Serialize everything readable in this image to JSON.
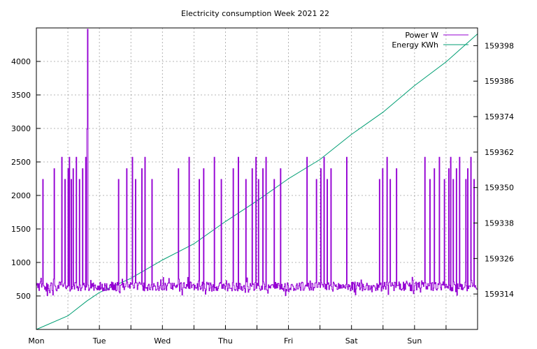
{
  "chart_data": {
    "type": "line",
    "title": "Electricity consumption Week 2021 22",
    "x": {
      "range_days": [
        0,
        7
      ],
      "tick_labels": [
        "Mon",
        "Tue",
        "Wed",
        "Thu",
        "Fri",
        "Sat",
        "Sun"
      ],
      "label_positions_days": [
        0,
        1,
        2,
        3,
        4,
        5,
        6
      ],
      "gridline_positions_days": [
        0.5,
        1,
        1.5,
        2,
        2.5,
        3,
        3.5,
        4,
        4.5,
        5,
        5.5,
        6,
        6.5
      ]
    },
    "y_left": {
      "range": [
        0,
        4500
      ],
      "ticks": [
        500,
        1000,
        1500,
        2000,
        2500,
        3000,
        3500,
        4000
      ]
    },
    "y_right": {
      "range": [
        159302,
        159404
      ],
      "ticks": [
        159314,
        159326,
        159338,
        159350,
        159362,
        159374,
        159386,
        159398
      ]
    },
    "grid": true,
    "legend_position": "top-right",
    "series": [
      {
        "name": "Power W",
        "axis": "left",
        "color": "#9400d3",
        "baseline_w": [
          500,
          780
        ],
        "spike_levels_w": [
          2240,
          2400,
          2570
        ],
        "peaks": [
          {
            "day": 0.8,
            "value_w": 2990
          },
          {
            "day": 0.81,
            "value_w": 4230
          },
          {
            "day": 0.815,
            "value_w": 4480
          }
        ],
        "spike_days": [
          0.1,
          0.28,
          0.4,
          0.45,
          0.5,
          0.52,
          0.55,
          0.58,
          0.63,
          0.68,
          0.73,
          0.78,
          1.3,
          1.43,
          1.52,
          1.57,
          1.67,
          1.72,
          1.83,
          2.25,
          2.42,
          2.58,
          2.65,
          2.82,
          2.93,
          3.12,
          3.2,
          3.32,
          3.42,
          3.48,
          3.53,
          3.6,
          3.65,
          3.78,
          3.88,
          4.3,
          4.45,
          4.52,
          4.57,
          4.62,
          4.68,
          4.93,
          5.45,
          5.5,
          5.57,
          5.62,
          5.72,
          6.17,
          6.25,
          6.32,
          6.4,
          6.48,
          6.55,
          6.58,
          6.62,
          6.67,
          6.72,
          6.82,
          6.85,
          6.9,
          6.95
        ]
      },
      {
        "name": "Energy KWh",
        "axis": "right",
        "color": "#009e73",
        "points": [
          {
            "day": 0,
            "value": 159302.0
          },
          {
            "day": 0.5,
            "value": 159306.6
          },
          {
            "day": 0.8,
            "value": 159311.6
          },
          {
            "day": 1.0,
            "value": 159314.5
          },
          {
            "day": 1.5,
            "value": 159319.3
          },
          {
            "day": 2.0,
            "value": 159325.5
          },
          {
            "day": 2.5,
            "value": 159331.0
          },
          {
            "day": 3.0,
            "value": 159338.5
          },
          {
            "day": 3.5,
            "value": 159345.5
          },
          {
            "day": 4.0,
            "value": 159353.0
          },
          {
            "day": 4.5,
            "value": 159359.5
          },
          {
            "day": 5.0,
            "value": 159368.0
          },
          {
            "day": 5.5,
            "value": 159375.5
          },
          {
            "day": 6.0,
            "value": 159384.5
          },
          {
            "day": 6.5,
            "value": 159392.5
          },
          {
            "day": 7.0,
            "value": 159402.0
          }
        ]
      }
    ]
  }
}
